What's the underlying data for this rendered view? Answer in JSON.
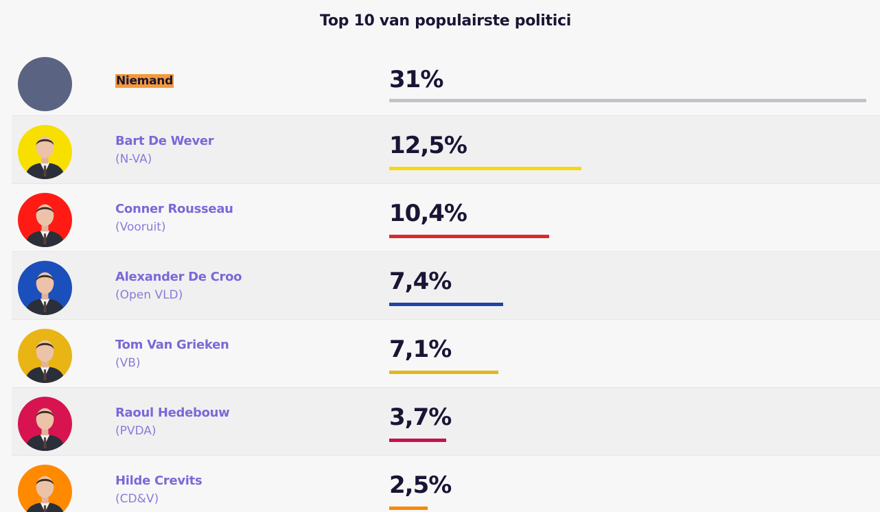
{
  "chart_data": {
    "type": "bar",
    "title": "Top 10 van populairste politici",
    "xlim": [
      0,
      31
    ],
    "rows": [
      {
        "name": "Niemand",
        "party": "",
        "value": 31,
        "label": "31%",
        "color": "#c4c2c8",
        "avatar_color": "#5a6482",
        "is_photo": false,
        "highlight": true
      },
      {
        "name": "Bart De Wever",
        "party": "(N-VA)",
        "value": 12.5,
        "label": "12,5%",
        "color": "#f6d90a",
        "avatar_color": "#f7df00",
        "is_photo": true,
        "highlight": false
      },
      {
        "name": "Conner Rousseau",
        "party": "(Vooruit)",
        "value": 10.4,
        "label": "10,4%",
        "color": "#dc2a2a",
        "avatar_color": "#ff1b14",
        "is_photo": true,
        "highlight": false
      },
      {
        "name": "Alexander De Croo",
        "party": "(Open VLD)",
        "value": 7.4,
        "label": "7,4%",
        "color": "#1d45a8",
        "avatar_color": "#1b4fbb",
        "is_photo": true,
        "highlight": false
      },
      {
        "name": "Tom Van Grieken",
        "party": "(VB)",
        "value": 7.1,
        "label": "7,1%",
        "color": "#e0b81c",
        "avatar_color": "#e8b515",
        "is_photo": true,
        "highlight": false
      },
      {
        "name": "Raoul Hedebouw",
        "party": "(PVDA)",
        "value": 3.7,
        "label": "3,7%",
        "color": "#c3124a",
        "avatar_color": "#d7144f",
        "is_photo": true,
        "highlight": false
      },
      {
        "name": "Hilde Crevits",
        "party": "(CD&V)",
        "value": 2.5,
        "label": "2,5%",
        "color": "#f58a0c",
        "avatar_color": "#ff8a00",
        "is_photo": true,
        "highlight": false
      }
    ]
  }
}
